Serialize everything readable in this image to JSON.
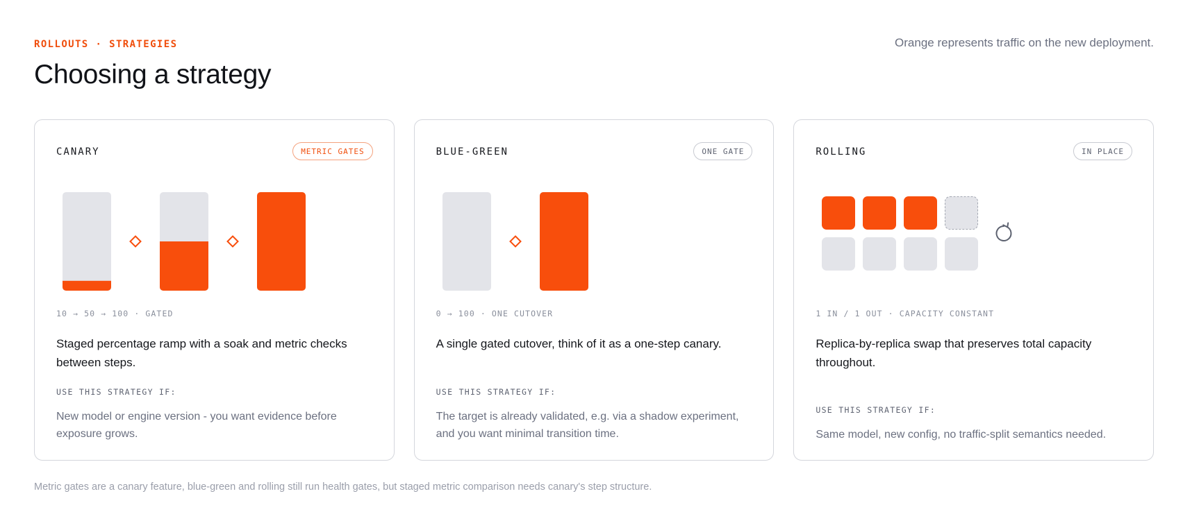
{
  "header": {
    "eyebrow": "ROLLOUTS · STRATEGIES",
    "title": "Choosing a strategy",
    "note": "Orange represents traffic on the new deployment."
  },
  "colors": {
    "accent": "#f84e0c",
    "neutral": "#e3e4e9",
    "border": "#d4d6dc",
    "muted_text": "#6b7080"
  },
  "cards": [
    {
      "title": "CANARY",
      "badge": "METRIC GATES",
      "badge_accent": true,
      "viz": {
        "type": "ramp",
        "bars": [
          {
            "new_traffic_pct": 10
          },
          {
            "new_traffic_pct": 50
          },
          {
            "new_traffic_pct": 100
          }
        ],
        "gate_icon": "diamond-gate-icon"
      },
      "caption": "10 → 50 → 100 · GATED",
      "description": "Staged percentage ramp with a soak and metric checks between steps.",
      "use_label": "USE THIS STRATEGY IF:",
      "use_text": "New model or engine version - you want evidence before exposure grows."
    },
    {
      "title": "BLUE-GREEN",
      "badge": "ONE GATE",
      "badge_accent": false,
      "viz": {
        "type": "cutover",
        "bars": [
          {
            "new_traffic_pct": 0
          },
          {
            "new_traffic_pct": 100
          }
        ],
        "gate_icon": "diamond-gate-icon"
      },
      "caption": "0 → 100 · ONE CUTOVER",
      "description": "A single gated cutover, think of it as a one-step canary.",
      "use_label": "USE THIS STRATEGY IF:",
      "use_text": "The target is already validated, e.g. via a shadow experiment, and you want minimal transition time."
    },
    {
      "title": "ROLLING",
      "badge": "IN PLACE",
      "badge_accent": false,
      "viz": {
        "type": "replicas",
        "rows": [
          [
            "new",
            "new",
            "new",
            "pending"
          ],
          [
            "old",
            "old",
            "old",
            "old"
          ]
        ],
        "cycle_icon": "refresh-icon"
      },
      "caption": "1 IN / 1 OUT · CAPACITY CONSTANT",
      "description": "Replica-by-replica swap that preserves total capacity throughout.",
      "use_label": "USE THIS STRATEGY IF:",
      "use_text": "Same model, new config, no traffic-split semantics needed."
    }
  ],
  "footnote": "Metric gates are a canary feature, blue-green and rolling still run health gates, but staged metric comparison needs canary's step structure."
}
